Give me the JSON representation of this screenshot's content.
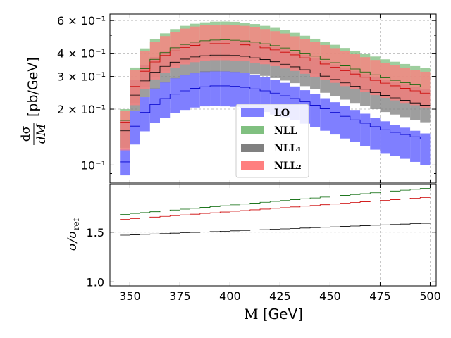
{
  "chart_data": [
    {
      "type": "histogram-band",
      "panel": "main",
      "ylabel": "dσ/dM [pb/GeV]",
      "yscale": "log",
      "ylim": [
        0.08,
        0.65
      ],
      "xlim": [
        340,
        503
      ],
      "grid": true,
      "legend_position": "center-right",
      "x_bin_edges": [
        345,
        350,
        355,
        360,
        365,
        370,
        375,
        380,
        385,
        390,
        395,
        400,
        405,
        410,
        415,
        420,
        425,
        430,
        435,
        440,
        445,
        450,
        455,
        460,
        465,
        470,
        475,
        480,
        485,
        490,
        495,
        500
      ],
      "y_ticks": [
        {
          "value": 0.1,
          "label": "10⁻¹"
        },
        {
          "value": 0.2,
          "label": "2 × 10⁻¹"
        },
        {
          "value": 0.3,
          "label": "3 × 10⁻¹"
        },
        {
          "value": 0.4,
          "label": "4 × 10⁻¹"
        },
        {
          "value": 0.6,
          "label": "6 × 10⁻¹"
        }
      ],
      "series": [
        {
          "name": "LO",
          "color": "#7f7fff",
          "line_color": "#0000cc",
          "central": [
            0.104,
            0.162,
            0.192,
            0.212,
            0.228,
            0.241,
            0.251,
            0.259,
            0.264,
            0.267,
            0.267,
            0.266,
            0.262,
            0.257,
            0.251,
            0.244,
            0.236,
            0.228,
            0.219,
            0.21,
            0.201,
            0.192,
            0.183,
            0.175,
            0.168,
            0.161,
            0.155,
            0.15,
            0.146,
            0.142,
            0.138
          ],
          "upper": [
            0.122,
            0.195,
            0.232,
            0.259,
            0.279,
            0.294,
            0.306,
            0.315,
            0.32,
            0.321,
            0.32,
            0.318,
            0.313,
            0.306,
            0.297,
            0.288,
            0.277,
            0.265,
            0.253,
            0.241,
            0.229,
            0.218,
            0.208,
            0.198,
            0.189,
            0.18,
            0.172,
            0.165,
            0.159,
            0.153,
            0.148
          ],
          "lower": [
            0.088,
            0.129,
            0.152,
            0.168,
            0.18,
            0.19,
            0.198,
            0.204,
            0.207,
            0.208,
            0.207,
            0.206,
            0.202,
            0.198,
            0.193,
            0.187,
            0.181,
            0.174,
            0.167,
            0.16,
            0.153,
            0.146,
            0.139,
            0.133,
            0.127,
            0.121,
            0.116,
            0.112,
            0.108,
            0.104,
            0.1
          ]
        },
        {
          "name": "NLL",
          "color": "#80c080",
          "line_color": "#006400",
          "central": [
            0.174,
            0.273,
            0.33,
            0.371,
            0.403,
            0.428,
            0.446,
            0.459,
            0.467,
            0.471,
            0.472,
            0.47,
            0.466,
            0.459,
            0.45,
            0.439,
            0.427,
            0.414,
            0.4,
            0.386,
            0.371,
            0.356,
            0.342,
            0.329,
            0.317,
            0.306,
            0.295,
            0.286,
            0.278,
            0.27,
            0.263
          ],
          "upper": [
            0.2,
            0.335,
            0.425,
            0.475,
            0.512,
            0.54,
            0.562,
            0.577,
            0.587,
            0.592,
            0.593,
            0.591,
            0.585,
            0.575,
            0.562,
            0.548,
            0.532,
            0.515,
            0.497,
            0.479,
            0.461,
            0.444,
            0.427,
            0.411,
            0.397,
            0.384,
            0.371,
            0.36,
            0.35,
            0.341,
            0.333
          ],
          "lower": [
            0.124,
            0.216,
            0.262,
            0.296,
            0.322,
            0.342,
            0.357,
            0.368,
            0.374,
            0.378,
            0.378,
            0.376,
            0.373,
            0.367,
            0.36,
            0.351,
            0.341,
            0.331,
            0.32,
            0.309,
            0.297,
            0.285,
            0.274,
            0.263,
            0.254,
            0.245,
            0.237,
            0.229,
            0.222,
            0.216,
            0.21
          ]
        },
        {
          "name": "NLL₁",
          "color": "#808080",
          "line_color": "#000000",
          "central": [
            0.153,
            0.238,
            0.284,
            0.316,
            0.34,
            0.358,
            0.372,
            0.382,
            0.388,
            0.391,
            0.391,
            0.389,
            0.385,
            0.378,
            0.37,
            0.36,
            0.349,
            0.338,
            0.326,
            0.314,
            0.301,
            0.289,
            0.277,
            0.266,
            0.256,
            0.246,
            0.237,
            0.23,
            0.223,
            0.216,
            0.21
          ],
          "upper": [
            0.175,
            0.288,
            0.345,
            0.382,
            0.411,
            0.432,
            0.448,
            0.46,
            0.467,
            0.471,
            0.471,
            0.468,
            0.463,
            0.455,
            0.445,
            0.433,
            0.42,
            0.406,
            0.392,
            0.377,
            0.362,
            0.348,
            0.334,
            0.321,
            0.309,
            0.298,
            0.288,
            0.279,
            0.271,
            0.264,
            0.257
          ],
          "lower": [
            0.123,
            0.195,
            0.232,
            0.258,
            0.278,
            0.293,
            0.304,
            0.312,
            0.317,
            0.319,
            0.319,
            0.317,
            0.314,
            0.309,
            0.302,
            0.294,
            0.285,
            0.276,
            0.266,
            0.256,
            0.245,
            0.235,
            0.225,
            0.216,
            0.208,
            0.2,
            0.193,
            0.187,
            0.181,
            0.175,
            0.17
          ]
        },
        {
          "name": "NLL₂",
          "color": "#ff7f7f",
          "line_color": "#cc0000",
          "central": [
            0.17,
            0.265,
            0.32,
            0.359,
            0.389,
            0.412,
            0.429,
            0.441,
            0.448,
            0.451,
            0.451,
            0.449,
            0.444,
            0.437,
            0.428,
            0.417,
            0.405,
            0.392,
            0.378,
            0.364,
            0.35,
            0.336,
            0.322,
            0.309,
            0.297,
            0.286,
            0.276,
            0.267,
            0.259,
            0.251,
            0.244
          ],
          "upper": [
            0.196,
            0.325,
            0.41,
            0.46,
            0.495,
            0.522,
            0.543,
            0.557,
            0.566,
            0.57,
            0.571,
            0.568,
            0.562,
            0.552,
            0.54,
            0.526,
            0.511,
            0.494,
            0.477,
            0.46,
            0.443,
            0.426,
            0.41,
            0.395,
            0.381,
            0.368,
            0.356,
            0.345,
            0.335,
            0.326,
            0.318
          ],
          "lower": [
            0.12,
            0.21,
            0.256,
            0.289,
            0.314,
            0.334,
            0.348,
            0.358,
            0.364,
            0.367,
            0.367,
            0.365,
            0.362,
            0.356,
            0.349,
            0.341,
            0.331,
            0.321,
            0.31,
            0.299,
            0.288,
            0.277,
            0.266,
            0.256,
            0.247,
            0.238,
            0.23,
            0.223,
            0.216,
            0.21,
            0.204
          ]
        }
      ]
    },
    {
      "type": "line-step",
      "panel": "ratio",
      "xlabel": "M [GeV]",
      "ylabel": "σ/σ_ref",
      "ylim": [
        0.96,
        1.98
      ],
      "xlim": [
        340,
        503
      ],
      "grid": true,
      "x_ticks": [
        350,
        375,
        400,
        425,
        450,
        475,
        500
      ],
      "y_ticks": [
        1.0,
        1.5
      ],
      "x_bin_edges": [
        345,
        500
      ],
      "series": [
        {
          "name": "LO",
          "color": "#0000cc",
          "start": 1.0,
          "end": 1.0
        },
        {
          "name": "NLL",
          "color": "#006400",
          "start": 1.68,
          "end": 1.94
        },
        {
          "name": "NLL₁",
          "color": "#000000",
          "start": 1.47,
          "end": 1.59
        },
        {
          "name": "NLL₂",
          "color": "#cc0000",
          "start": 1.63,
          "end": 1.85
        }
      ]
    }
  ],
  "labels": {
    "main_ylabel_top": "dσ",
    "main_ylabel_bottom": "dM",
    "main_ylabel_unit": "[pb/GeV]",
    "ratio_ylabel": "σ/σ",
    "ratio_ylabel_sub": "ref",
    "xlabel_var": "M",
    "xlabel_unit": "[GeV]"
  },
  "legend": [
    "LO",
    "NLL",
    "NLL₁",
    "NLL₂"
  ]
}
